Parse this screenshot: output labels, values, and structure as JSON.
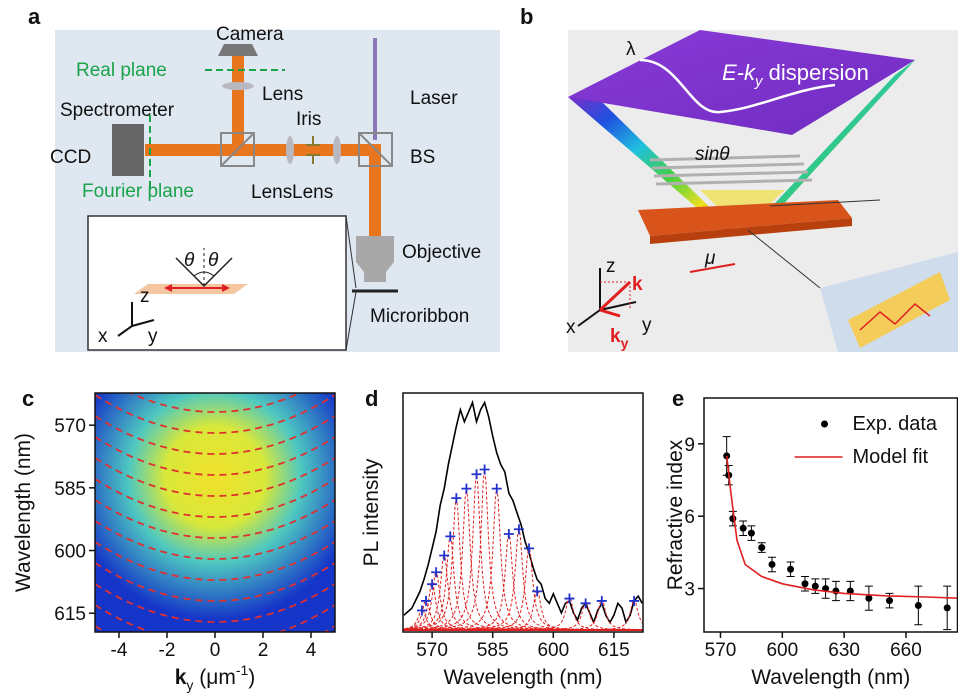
{
  "diagram_a": {
    "letter": "a",
    "camera": "Camera",
    "real_plane": "Real plane",
    "lens_top": "Lens",
    "spectrometer": "Spectrometer",
    "iris": "Iris",
    "laser": "Laser",
    "ccd": "CCD",
    "bs": "BS",
    "fourier_plane": "Fourier plane",
    "lens_left": "Lens",
    "lens_right": "Lens",
    "objective": "Objective",
    "microribbon": "Microribbon",
    "inset": {
      "theta_left": "θ",
      "theta_right": "θ",
      "z": "z",
      "x": "x",
      "y": "y"
    }
  },
  "diagram_b": {
    "letter": "b",
    "lambda": "λ",
    "dispersion": {
      "main": "E-k",
      "sub": "y",
      "rest": " dispersion"
    },
    "sin_theta": "sinθ",
    "mu": "μ",
    "axes": {
      "z": "z",
      "x": "x",
      "y": "y",
      "k": "k",
      "ky": "k",
      "ky_sub": "y"
    }
  },
  "chart_data": [
    {
      "type": "heatmap",
      "label": "c",
      "xlabel": {
        "main": "k",
        "sub": "y",
        "unit": " (μm",
        "sup": "-1",
        "close": ")"
      },
      "ylabel": "Wavelength (nm)",
      "xlim": [
        -5,
        5
      ],
      "xticks": [
        -4,
        -2,
        0,
        2,
        4
      ],
      "ylim": [
        619.5,
        562.3
      ],
      "yticks": [
        570,
        585,
        600,
        615
      ]
    },
    {
      "type": "line",
      "label": "d",
      "xlabel": "Wavelength (nm)",
      "ylabel": "PL intensity",
      "xlim": [
        562.8,
        622.2
      ],
      "xticks": [
        570,
        585,
        600,
        615
      ],
      "ylim": [
        0,
        1
      ],
      "series": [
        {
          "style": "line",
          "color": "#000000",
          "x": [
            563,
            565,
            567,
            568,
            569,
            570,
            571,
            572,
            573,
            574,
            575,
            576,
            577,
            578,
            579,
            580,
            581,
            582,
            583,
            584,
            585,
            586,
            587,
            588,
            589,
            590,
            591,
            592,
            593,
            594,
            595,
            596,
            597,
            598,
            599,
            600,
            601,
            602,
            603,
            604,
            605,
            606,
            607,
            608,
            609,
            610,
            611,
            612,
            613,
            614,
            615,
            616,
            617,
            618,
            619,
            620,
            621,
            622
          ],
          "values": [
            0.07,
            0.1,
            0.17,
            0.22,
            0.28,
            0.35,
            0.42,
            0.53,
            0.6,
            0.7,
            0.78,
            0.86,
            0.93,
            0.88,
            0.92,
            0.96,
            0.88,
            0.93,
            0.96,
            0.9,
            0.82,
            0.75,
            0.7,
            0.67,
            0.58,
            0.55,
            0.5,
            0.45,
            0.38,
            0.33,
            0.27,
            0.22,
            0.2,
            0.14,
            0.12,
            0.16,
            0.12,
            0.08,
            0.12,
            0.13,
            0.08,
            0.05,
            0.1,
            0.12,
            0.08,
            0.04,
            0.09,
            0.12,
            0.07,
            0.04,
            0.07,
            0.12,
            0.1,
            0.04,
            0.07,
            0.13,
            0.15,
            0.12
          ]
        },
        {
          "style": "cross-peaks",
          "color": "#2233cc",
          "peak_color": "#e02020",
          "x": [
            567.5,
            568.5,
            570,
            571,
            573,
            574.5,
            576,
            578.5,
            581,
            583,
            586,
            589,
            591.5,
            594,
            596,
            604,
            608,
            612,
            620
          ],
          "values": [
            0.09,
            0.13,
            0.2,
            0.25,
            0.32,
            0.4,
            0.56,
            0.6,
            0.66,
            0.68,
            0.6,
            0.41,
            0.43,
            0.35,
            0.17,
            0.14,
            0.12,
            0.13,
            0.13
          ]
        }
      ]
    },
    {
      "type": "scatter",
      "label": "e",
      "xlabel": "Wavelength (nm)",
      "ylabel": "Refractive index",
      "xlim": [
        562,
        685
      ],
      "xticks": [
        570,
        600,
        630,
        660
      ],
      "ylim": [
        1.2,
        10.9
      ],
      "yticks": [
        3,
        6,
        9
      ],
      "legend": "upper right",
      "series": [
        {
          "name": "Exp. data",
          "style": "points",
          "color": "#000000",
          "x": [
            573,
            574,
            576,
            581,
            585,
            590,
            595,
            604,
            611,
            616,
            621,
            626,
            633,
            642,
            652,
            666,
            680
          ],
          "values": [
            8.5,
            7.7,
            5.9,
            5.5,
            5.3,
            4.7,
            4.0,
            3.8,
            3.2,
            3.1,
            3.0,
            2.9,
            2.9,
            2.6,
            2.5,
            2.3,
            2.2
          ],
          "errors": [
            0.8,
            0.4,
            0.3,
            0.3,
            0.3,
            0.2,
            0.3,
            0.3,
            0.3,
            0.3,
            0.4,
            0.4,
            0.4,
            0.5,
            0.3,
            0.8,
            0.9
          ]
        },
        {
          "name": "Model fit",
          "style": "line",
          "color": "#e02020",
          "x": [
            573,
            575,
            578,
            582,
            590,
            600,
            615,
            630,
            650,
            670,
            685
          ],
          "values": [
            8.5,
            7,
            5,
            4,
            3.5,
            3.2,
            2.95,
            2.8,
            2.7,
            2.65,
            2.6
          ]
        }
      ]
    }
  ]
}
